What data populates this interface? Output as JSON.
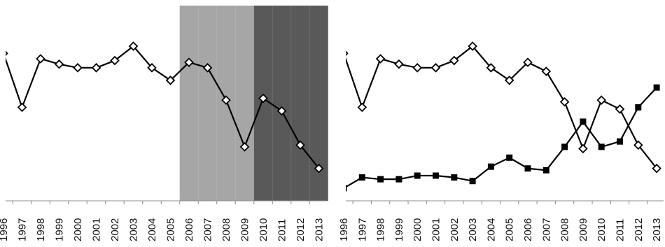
{
  "chart_data": [
    {
      "type": "line",
      "title": "",
      "xlabel": "",
      "ylabel": "",
      "grid": false,
      "legend": "none",
      "x_tick_labels": [
        "1996",
        "1997",
        "1998",
        "1999",
        "2000",
        "2001",
        "2002",
        "2003",
        "2004",
        "2005",
        "2006",
        "2007",
        "2008",
        "2009",
        "2010",
        "2011",
        "2012",
        "2013"
      ],
      "ylim": [
        0,
        100
      ],
      "shaded_periods": [
        {
          "from": "2005.5",
          "to": "2009.5",
          "color": "#a6a6a6"
        },
        {
          "from": "2009.5",
          "to": "2013.5",
          "color": "#595959"
        }
      ],
      "series": [
        {
          "marker": "open-diamond",
          "x": [
            1996,
            1997,
            1998,
            1999,
            2000,
            2001,
            2002,
            2003,
            2004,
            2005,
            2006,
            2007,
            2008,
            2009,
            2010,
            2011,
            2012,
            2013
          ],
          "values": [
            82,
            52,
            79,
            76,
            74,
            74,
            78,
            86,
            74,
            67,
            77,
            74,
            56,
            30,
            57,
            50,
            31,
            18
          ]
        }
      ]
    },
    {
      "type": "line",
      "title": "",
      "xlabel": "",
      "ylabel": "",
      "grid": false,
      "legend": "none",
      "x_tick_labels": [
        "1996",
        "1997",
        "1998",
        "1999",
        "2000",
        "2001",
        "2002",
        "2003",
        "2004",
        "2005",
        "2006",
        "2007",
        "2008",
        "2009",
        "2010",
        "2011",
        "2012",
        "2013"
      ],
      "ylim": [
        0,
        100
      ],
      "series": [
        {
          "marker": "open-diamond",
          "x": [
            1996,
            1997,
            1998,
            1999,
            2000,
            2001,
            2002,
            2003,
            2004,
            2005,
            2006,
            2007,
            2008,
            2009,
            2010,
            2011,
            2012,
            2013
          ],
          "values": [
            82,
            52,
            79,
            76,
            74,
            74,
            78,
            86,
            74,
            67,
            77,
            72,
            55,
            29,
            56,
            51,
            31,
            18
          ]
        },
        {
          "marker": "filled-square",
          "x": [
            1996,
            1997,
            1998,
            1999,
            2000,
            2001,
            2002,
            2003,
            2004,
            2005,
            2006,
            2007,
            2008,
            2009,
            2010,
            2011,
            2012,
            2013
          ],
          "values": [
            7,
            13,
            12,
            12,
            14,
            14,
            13,
            11,
            19,
            24,
            18,
            17,
            30,
            44,
            30,
            33,
            52,
            63
          ]
        }
      ]
    }
  ]
}
